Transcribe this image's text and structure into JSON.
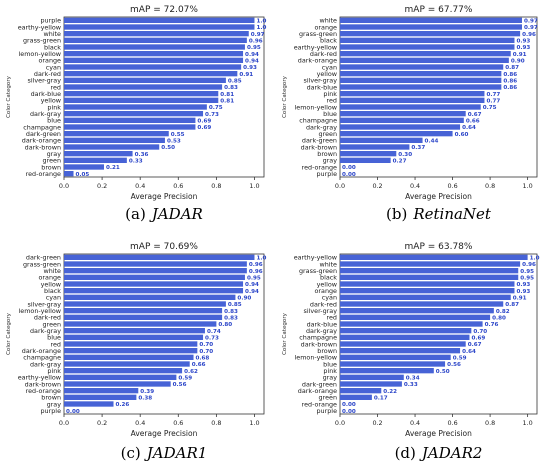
{
  "figure": {
    "panels": [
      {
        "caption_tag": "(a)",
        "caption_name": "JADAR",
        "chart_data": {
          "type": "bar",
          "orientation": "horizontal",
          "title": "mAP = 72.07%",
          "xlabel": "Average Precision",
          "ylabel": "Color Category",
          "xlim": [
            0,
            1.05
          ],
          "xticks": [
            "0.0",
            "0.2",
            "0.4",
            "0.6",
            "0.8",
            "1.0"
          ],
          "categories": [
            "purple",
            "earthy-yellow",
            "white",
            "grass-green",
            "black",
            "lemon-yellow",
            "orange",
            "cyan",
            "dark-red",
            "silver-gray",
            "red",
            "dark-blue",
            "yellow",
            "pink",
            "dark-gray",
            "blue",
            "champagne",
            "dark-green",
            "dark-orange",
            "dark-brown",
            "gray",
            "green",
            "brown",
            "red-orange"
          ],
          "values": [
            1.0,
            1.0,
            0.97,
            0.96,
            0.95,
            0.94,
            0.94,
            0.93,
            0.91,
            0.85,
            0.83,
            0.81,
            0.81,
            0.75,
            0.73,
            0.69,
            0.69,
            0.55,
            0.53,
            0.5,
            0.36,
            0.33,
            0.21,
            0.05
          ],
          "value_labels": [
            "1.0",
            "1.0",
            "0.97",
            "0.96",
            "0.95",
            "0.94",
            "0.94",
            "0.93",
            "0.91",
            "0.85",
            "0.83",
            "0.81",
            "0.81",
            "0.75",
            "0.73",
            "0.69",
            "0.69",
            "0.55",
            "0.53",
            "0.50",
            "0.36",
            "0.33",
            "0.21",
            "0.05"
          ],
          "bar_color": "#4763d6",
          "label_color": "#2b45c8"
        }
      },
      {
        "caption_tag": "(b)",
        "caption_name": "RetinaNet",
        "chart_data": {
          "type": "bar",
          "orientation": "horizontal",
          "title": "mAP = 67.77%",
          "xlabel": "Average Precision",
          "ylabel": "Color Category",
          "xlim": [
            0,
            1.05
          ],
          "xticks": [
            "0.0",
            "0.2",
            "0.4",
            "0.6",
            "0.8",
            "1.0"
          ],
          "categories": [
            "white",
            "orange",
            "grass-green",
            "black",
            "earthy-yellow",
            "dark-red",
            "dark-orange",
            "cyan",
            "yellow",
            "silver-gray",
            "dark-blue",
            "pink",
            "red",
            "lemon-yellow",
            "blue",
            "champagne",
            "dark-gray",
            "green",
            "dark-green",
            "dark-brown",
            "brown",
            "gray",
            "red-orange",
            "purple"
          ],
          "values": [
            0.97,
            0.97,
            0.96,
            0.93,
            0.93,
            0.91,
            0.9,
            0.87,
            0.86,
            0.86,
            0.86,
            0.77,
            0.77,
            0.75,
            0.67,
            0.66,
            0.64,
            0.6,
            0.44,
            0.37,
            0.3,
            0.27,
            0.0,
            0.0
          ],
          "value_labels": [
            "0.97",
            "0.97",
            "0.96",
            "0.93",
            "0.93",
            "0.91",
            "0.90",
            "0.87",
            "0.86",
            "0.86",
            "0.86",
            "0.77",
            "0.77",
            "0.75",
            "0.67",
            "0.66",
            "0.64",
            "0.60",
            "0.44",
            "0.37",
            "0.30",
            "0.27",
            "0.00",
            "0.00"
          ],
          "bar_color": "#4763d6",
          "label_color": "#2b45c8"
        }
      },
      {
        "caption_tag": "(c)",
        "caption_name": "JADAR1",
        "chart_data": {
          "type": "bar",
          "orientation": "horizontal",
          "title": "mAP = 70.69%",
          "xlabel": "Average Precision",
          "ylabel": "Color Category",
          "xlim": [
            0,
            1.05
          ],
          "xticks": [
            "0.0",
            "0.2",
            "0.4",
            "0.6",
            "0.8",
            "1.0"
          ],
          "categories": [
            "dark-green",
            "grass-green",
            "white",
            "orange",
            "yellow",
            "black",
            "cyan",
            "silver-gray",
            "lemon-yellow",
            "dark-red",
            "green",
            "dark-gray",
            "blue",
            "red",
            "dark-orange",
            "champagne",
            "dark-gray",
            "pink",
            "earthy-yellow",
            "dark-brown",
            "red-orange",
            "brown",
            "gray",
            "purple"
          ],
          "values": [
            1.0,
            0.96,
            0.96,
            0.95,
            0.94,
            0.94,
            0.9,
            0.85,
            0.83,
            0.83,
            0.8,
            0.74,
            0.73,
            0.7,
            0.7,
            0.68,
            0.66,
            0.62,
            0.59,
            0.56,
            0.39,
            0.38,
            0.26,
            0.0
          ],
          "value_labels": [
            "1.0",
            "0.96",
            "0.96",
            "0.95",
            "0.94",
            "0.94",
            "0.90",
            "0.85",
            "0.83",
            "0.83",
            "0.80",
            "0.74",
            "0.73",
            "0.70",
            "0.70",
            "0.68",
            "0.66",
            "0.62",
            "0.59",
            "0.56",
            "0.39",
            "0.38",
            "0.26",
            "0.00"
          ],
          "bar_color": "#4763d6",
          "label_color": "#2b45c8"
        }
      },
      {
        "caption_tag": "(d)",
        "caption_name": "JADAR2",
        "chart_data": {
          "type": "bar",
          "orientation": "horizontal",
          "title": "mAP = 63.78%",
          "xlabel": "Average Precision",
          "ylabel": "Color Category",
          "xlim": [
            0,
            1.05
          ],
          "xticks": [
            "0.0",
            "0.2",
            "0.4",
            "0.6",
            "0.8",
            "1.0"
          ],
          "categories": [
            "earthy-yellow",
            "white",
            "grass-green",
            "black",
            "yellow",
            "orange",
            "cyan",
            "dark-red",
            "silver-gray",
            "red",
            "dark-blue",
            "dark-gray",
            "champagne",
            "dark-brown",
            "brown",
            "lemon-yellow",
            "blue",
            "pink",
            "gray",
            "dark-green",
            "dark-orange",
            "green",
            "red-orange",
            "purple"
          ],
          "values": [
            1.0,
            0.96,
            0.95,
            0.95,
            0.93,
            0.93,
            0.91,
            0.87,
            0.82,
            0.8,
            0.76,
            0.7,
            0.69,
            0.67,
            0.64,
            0.59,
            0.56,
            0.5,
            0.34,
            0.33,
            0.22,
            0.17,
            0.0,
            0.0
          ],
          "value_labels": [
            "1.0",
            "0.96",
            "0.95",
            "0.95",
            "0.93",
            "0.93",
            "0.91",
            "0.87",
            "0.82",
            "0.80",
            "0.76",
            "0.70",
            "0.69",
            "0.67",
            "0.64",
            "0.59",
            "0.56",
            "0.50",
            "0.34",
            "0.33",
            "0.22",
            "0.17",
            "0.00",
            "0.00"
          ],
          "bar_color": "#4763d6",
          "label_color": "#2b45c8"
        }
      }
    ]
  }
}
